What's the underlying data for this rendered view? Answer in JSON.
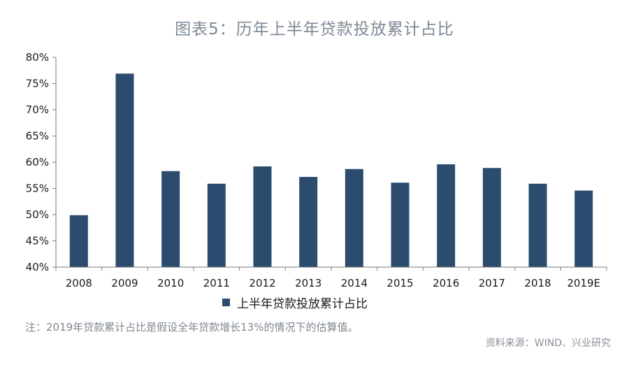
{
  "colors": {
    "bar": "#2b4c6f",
    "axis": "#7a7a7a",
    "title": "#7d8a97",
    "note": "#7f8791"
  },
  "chart_data": {
    "type": "bar",
    "title": "图表5：历年上半年贷款投放累计占比",
    "categories": [
      "2008",
      "2009",
      "2010",
      "2011",
      "2012",
      "2013",
      "2014",
      "2015",
      "2016",
      "2017",
      "2018",
      "2019E"
    ],
    "series": [
      {
        "name": "上半年贷款投放累计占比",
        "values": [
          49.9,
          76.9,
          58.3,
          55.9,
          59.2,
          57.2,
          58.7,
          56.1,
          59.6,
          58.9,
          55.9,
          54.6
        ]
      }
    ],
    "ylim": [
      40,
      80
    ],
    "yticks": [
      40,
      45,
      50,
      55,
      60,
      65,
      70,
      75,
      80
    ],
    "ytick_labels": [
      "40%",
      "45%",
      "50%",
      "55%",
      "60%",
      "65%",
      "70%",
      "75%",
      "80%"
    ],
    "xlabel": "",
    "ylabel": "",
    "grid": false,
    "legend_position": "bottom"
  },
  "note": "注：2019年贷款累计占比是假设全年贷款增长13%的情况下的估算值。",
  "source": "资料来源：WIND、兴业研究"
}
